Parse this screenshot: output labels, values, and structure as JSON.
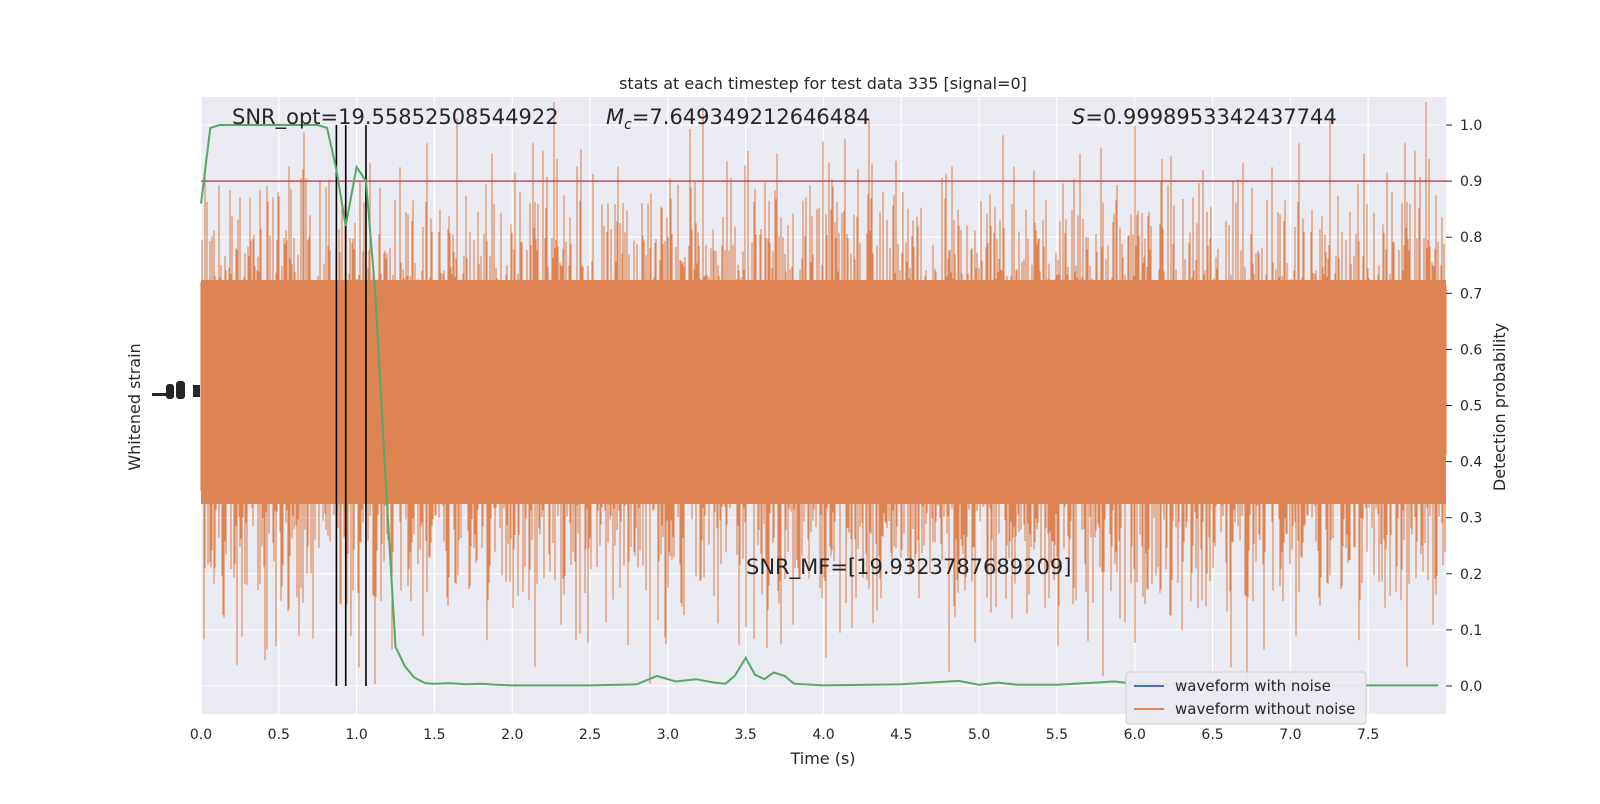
{
  "chart_data": {
    "type": "line",
    "title": "stats at each timestep for test data 335 [signal=0]",
    "xlabel": "Time (s)",
    "ylabel_left": "Whitened strain",
    "ylabel_right": "Detection probability",
    "xlim": [
      0,
      8
    ],
    "ylim_right": [
      -0.05,
      1.05
    ],
    "x_ticks": [
      "0.0",
      "0.5",
      "1.0",
      "1.5",
      "2.0",
      "2.5",
      "3.0",
      "3.5",
      "4.0",
      "4.5",
      "5.0",
      "5.5",
      "6.0",
      "6.5",
      "7.0",
      "7.5"
    ],
    "y_ticks_right": [
      "0.0",
      "0.1",
      "0.2",
      "0.3",
      "0.4",
      "0.5",
      "0.6",
      "0.7",
      "0.8",
      "0.9",
      "1.0"
    ],
    "grid": true,
    "legend_position": "bottom-right",
    "annotations": {
      "snr_opt": "SNR_opt=19.55852508544922",
      "mc_label": "M",
      "mc_sub": "c",
      "mc_value": "=7.649349212646484",
      "s_label": "S",
      "s_value": "=0.9998953342437744",
      "snr_mf": "SNR_MF=[19.9323787689209]"
    },
    "series": [
      {
        "name": "waveform with noise",
        "color": "#4c72b0"
      },
      {
        "name": "waveform without noise",
        "color": "#dd8452"
      }
    ],
    "threshold": {
      "y": 0.9,
      "color": "#c44e52"
    },
    "vlines_x": [
      0.87,
      0.93,
      1.06
    ],
    "detection_probability": {
      "color": "#55a868",
      "x": [
        0.0,
        0.06,
        0.12,
        0.25,
        0.5,
        0.75,
        0.81,
        0.87,
        0.93,
        1.0,
        1.06,
        1.12,
        1.19,
        1.25,
        1.31,
        1.37,
        1.44,
        1.5,
        1.6,
        1.7,
        1.8,
        1.9,
        2.0,
        2.2,
        2.5,
        2.8,
        2.93,
        3.05,
        3.18,
        3.3,
        3.37,
        3.43,
        3.5,
        3.56,
        3.62,
        3.68,
        3.75,
        3.81,
        4.0,
        4.5,
        4.87,
        5.0,
        5.12,
        5.25,
        5.5,
        5.87,
        6.0,
        6.5,
        7.0,
        7.5,
        7.95
      ],
      "y": [
        0.86,
        0.995,
        1.0,
        1.0,
        1.0,
        1.0,
        0.995,
        0.92,
        0.82,
        0.925,
        0.9,
        0.7,
        0.35,
        0.07,
        0.035,
        0.015,
        0.005,
        0.004,
        0.005,
        0.003,
        0.004,
        0.002,
        0.001,
        0.001,
        0.001,
        0.003,
        0.018,
        0.008,
        0.012,
        0.006,
        0.004,
        0.018,
        0.05,
        0.02,
        0.012,
        0.024,
        0.018,
        0.004,
        0.001,
        0.003,
        0.009,
        0.002,
        0.006,
        0.002,
        0.002,
        0.008,
        0.004,
        0.002,
        0.001,
        0.001,
        0.001
      ]
    }
  },
  "legend": {
    "with_noise": "waveform with noise",
    "without_noise": "waveform without noise"
  }
}
